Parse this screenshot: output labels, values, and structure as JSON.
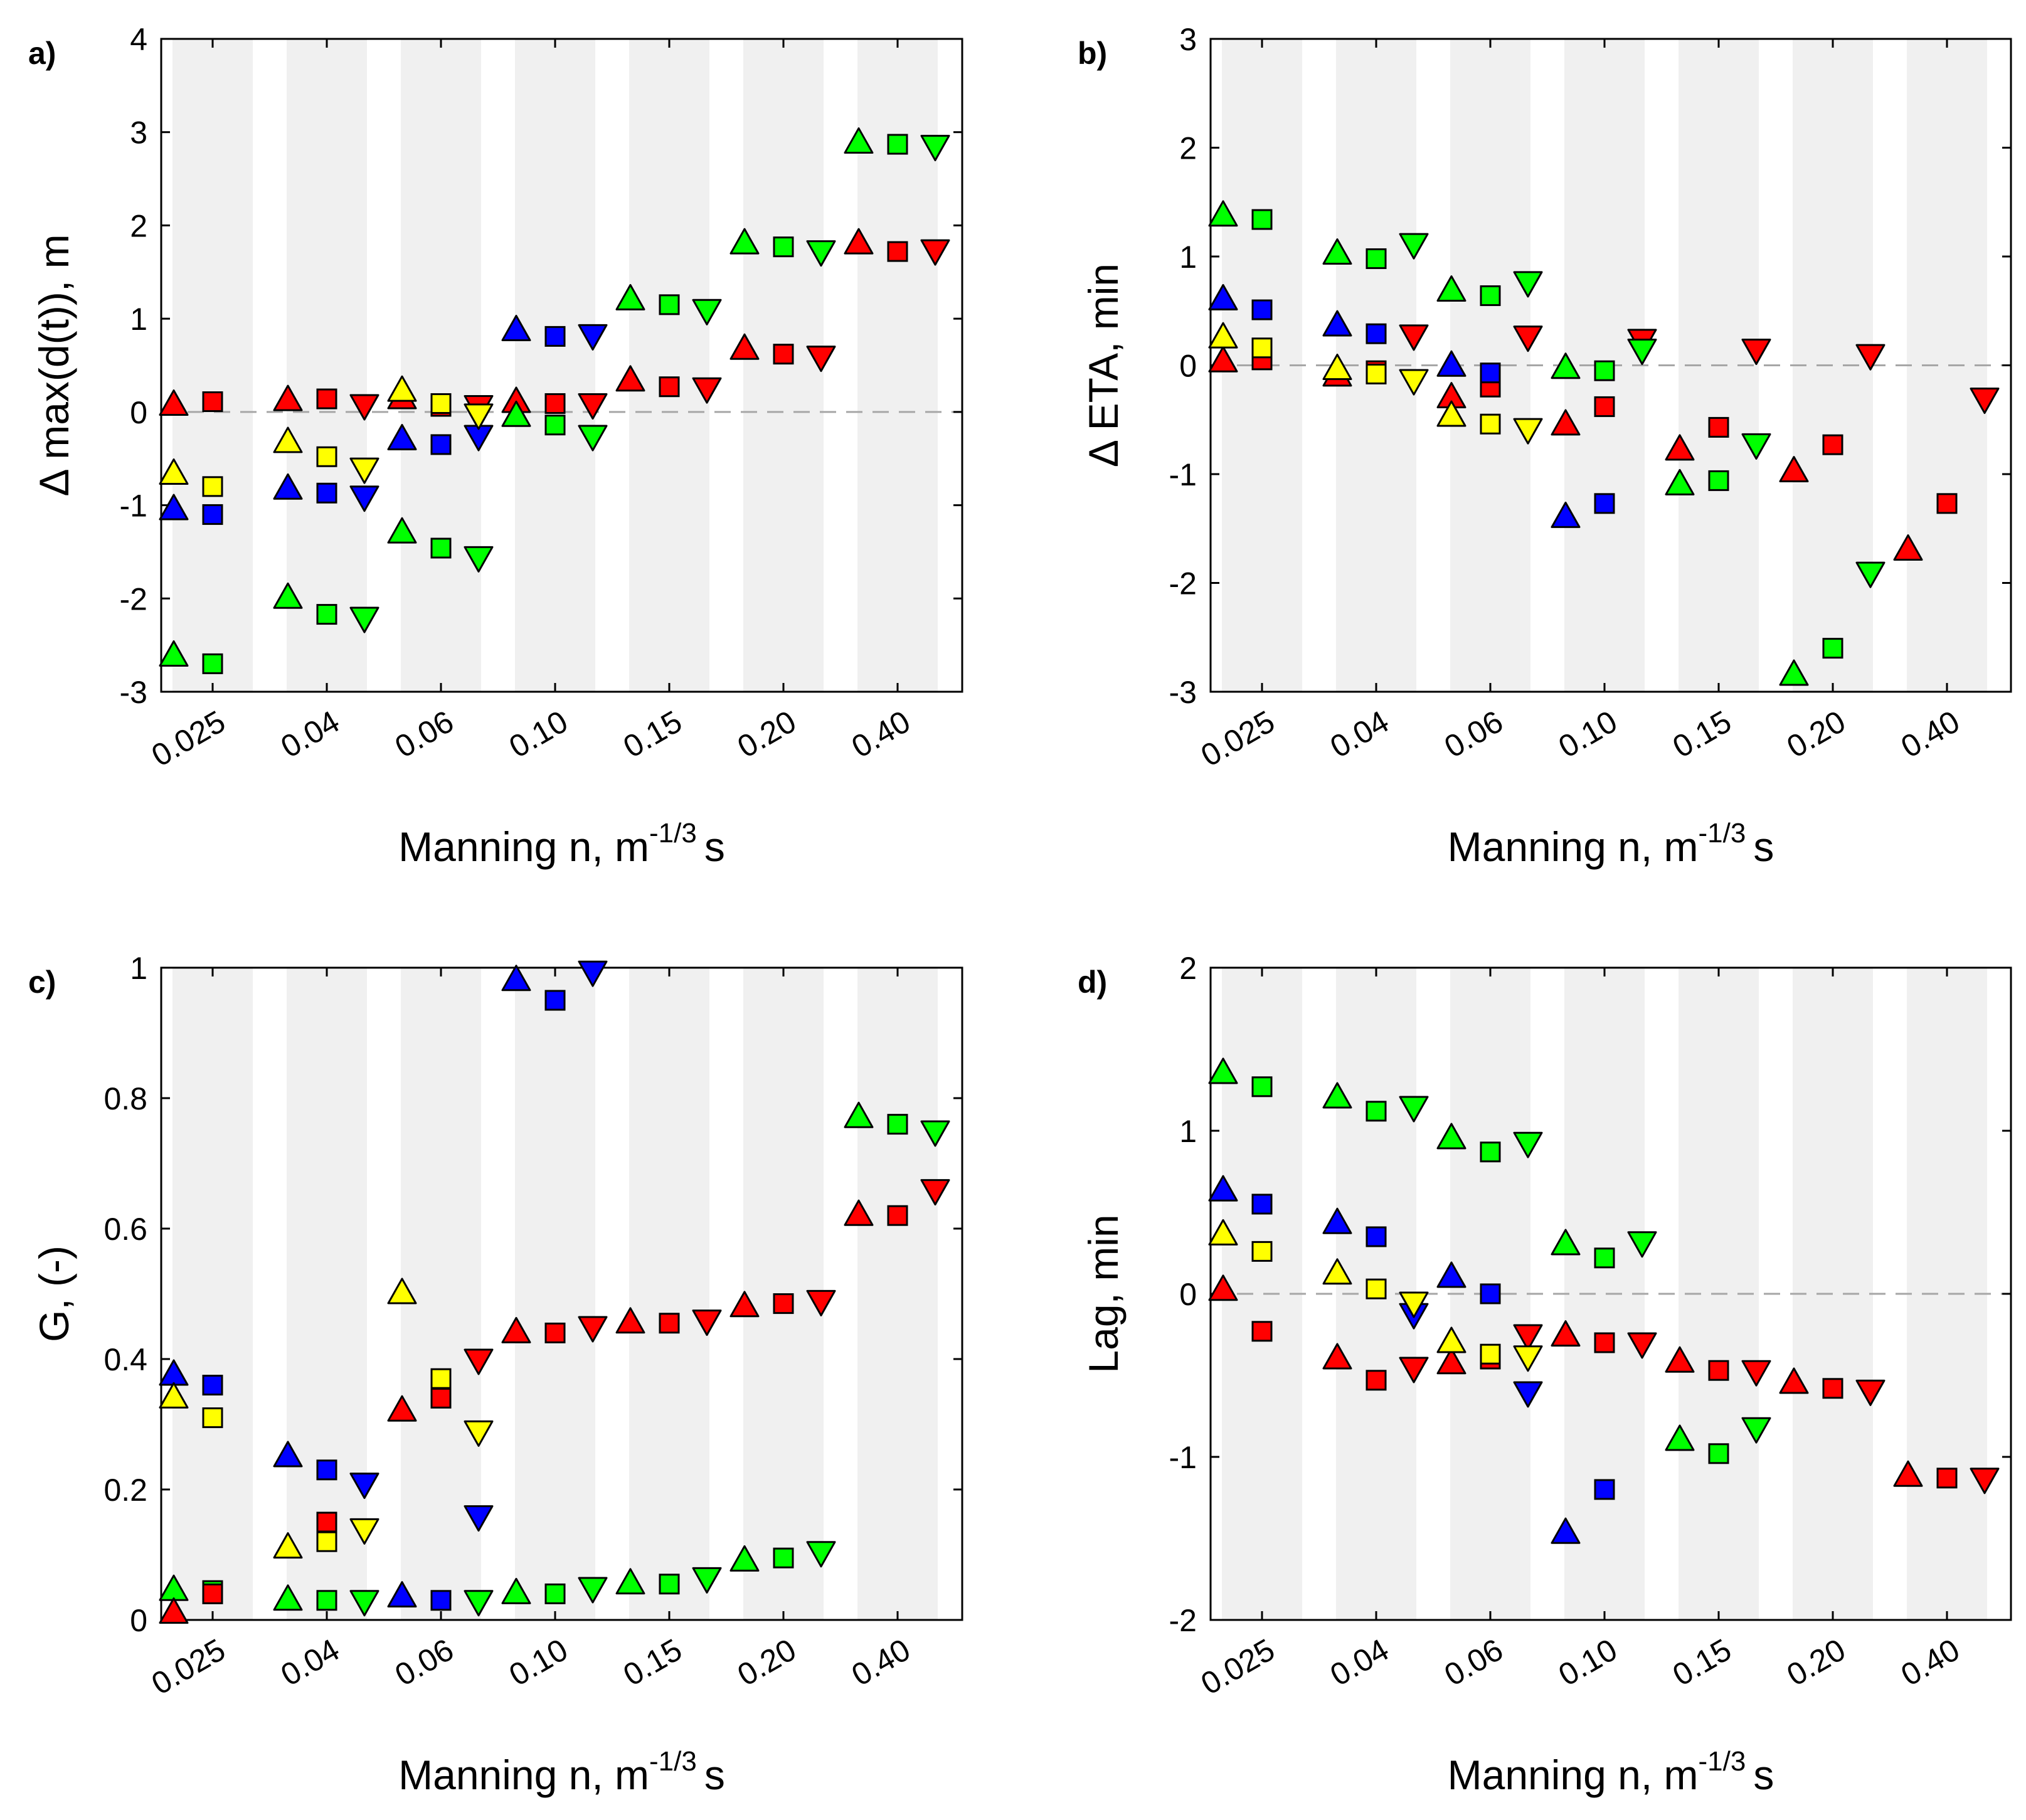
{
  "colors": {
    "red": "#ff0000",
    "green": "#00ff00",
    "blue": "#0000ff",
    "yellow": "#ffff00",
    "band": "#f0f0f0",
    "refline": "#a6a6a6"
  },
  "xlabel": {
    "main": "Manning n, m",
    "sup": "-1/3",
    "unit": "s"
  },
  "chart_data": [
    {
      "type": "scatter",
      "panel": "a)",
      "ylabel": "Δ max(d(t)), m",
      "categories": [
        "0.025",
        "0.04",
        "0.06",
        "0.10",
        "0.15",
        "0.20",
        "0.40"
      ],
      "ylim": [
        -3,
        4
      ],
      "yticks": [
        "-3",
        "-2",
        "-1",
        "0",
        "1",
        "2",
        "3",
        "4"
      ],
      "refline": 0,
      "series": [
        {
          "color": "red",
          "triangle_up": [
            0.07,
            0.12,
            0.14,
            0.1,
            0.33,
            0.67,
            1.8
          ],
          "square": [
            0.11,
            0.14,
            0.06,
            0.09,
            0.27,
            0.62,
            1.72
          ],
          "triangle_down": [
            null,
            0.08,
            0.07,
            0.09,
            0.26,
            0.6,
            1.74
          ]
        },
        {
          "color": "green",
          "triangle_up": [
            -2.62,
            -2.0,
            -1.3,
            -0.05,
            1.2,
            1.8,
            2.88
          ],
          "square": [
            -2.7,
            -2.17,
            -1.46,
            -0.14,
            1.15,
            1.77,
            2.87
          ],
          "triangle_down": [
            null,
            -2.2,
            -1.55,
            -0.25,
            1.1,
            1.73,
            2.86
          ]
        },
        {
          "color": "blue",
          "triangle_up": [
            -1.05,
            -0.83,
            -0.3,
            0.87,
            null,
            null,
            null
          ],
          "square": [
            -1.1,
            -0.87,
            -0.35,
            0.81,
            null,
            null,
            null
          ],
          "triangle_down": [
            null,
            -0.9,
            -0.25,
            0.83,
            null,
            null,
            null
          ]
        },
        {
          "color": "yellow",
          "triangle_up": [
            -0.67,
            -0.33,
            0.22,
            null,
            null,
            null,
            null
          ],
          "square": [
            -0.8,
            -0.48,
            0.09,
            null,
            null,
            null,
            null
          ],
          "triangle_down": [
            null,
            -0.6,
            -0.02,
            null,
            null,
            null,
            null
          ]
        }
      ]
    },
    {
      "type": "scatter",
      "panel": "b)",
      "ylabel": "Δ ETA, min",
      "categories": [
        "0.025",
        "0.04",
        "0.06",
        "0.10",
        "0.15",
        "0.20",
        "0.40"
      ],
      "ylim": [
        -3,
        3
      ],
      "yticks": [
        "-3",
        "-2",
        "-1",
        "0",
        "1",
        "2",
        "3"
      ],
      "refline": 0,
      "series": [
        {
          "color": "red",
          "triangle_up": [
            0.03,
            -0.1,
            -0.3,
            -0.55,
            -0.78,
            -0.98,
            -1.7
          ],
          "square": [
            0.05,
            -0.05,
            -0.2,
            -0.38,
            -0.57,
            -0.73,
            -1.27
          ],
          "triangle_down": [
            null,
            0.28,
            0.27,
            0.24,
            0.15,
            0.1,
            -0.3
          ]
        },
        {
          "color": "green",
          "triangle_up": [
            1.37,
            1.02,
            0.68,
            -0.03,
            -1.1,
            -2.85,
            null
          ],
          "square": [
            1.34,
            0.98,
            0.64,
            -0.05,
            -1.06,
            -2.6,
            null
          ],
          "triangle_down": [
            null,
            1.12,
            0.77,
            0.15,
            -0.72,
            -1.9,
            null
          ]
        },
        {
          "color": "blue",
          "triangle_up": [
            0.6,
            0.36,
            -0.01,
            -1.4,
            null,
            null,
            null
          ],
          "square": [
            0.51,
            0.29,
            -0.07,
            -1.27,
            null,
            null,
            null
          ],
          "triangle_down": [
            null,
            null,
            null,
            null,
            null,
            null,
            null
          ]
        },
        {
          "color": "yellow",
          "triangle_up": [
            0.25,
            -0.04,
            -0.47,
            null,
            null,
            null,
            null
          ],
          "square": [
            0.16,
            -0.08,
            -0.54,
            null,
            null,
            null,
            null
          ],
          "triangle_down": [
            null,
            -0.13,
            -0.58,
            null,
            null,
            null,
            null
          ]
        }
      ]
    },
    {
      "type": "scatter",
      "panel": "c)",
      "ylabel": "G, (-)",
      "categories": [
        "0.025",
        "0.04",
        "0.06",
        "0.10",
        "0.15",
        "0.20",
        "0.40"
      ],
      "ylim": [
        0,
        1
      ],
      "yticks": [
        "0",
        "0.2",
        "0.4",
        "0.6",
        "0.8",
        "1"
      ],
      "refline": null,
      "series": [
        {
          "color": "green",
          "triangle_up": [
            0.045,
            0.03,
            null,
            0.04,
            0.055,
            0.09,
            0.77
          ],
          "square": [
            0.045,
            0.03,
            null,
            0.04,
            0.055,
            0.095,
            0.76
          ],
          "triangle_down": [
            null,
            0.03,
            0.03,
            0.05,
            0.065,
            0.105,
            0.75
          ]
        },
        {
          "color": "red",
          "triangle_up": [
            0.01,
            null,
            0.32,
            0.44,
            0.455,
            0.48,
            0.62
          ],
          "square": [
            0.04,
            0.15,
            0.34,
            0.44,
            0.455,
            0.485,
            0.62
          ],
          "triangle_down": [
            null,
            null,
            0.4,
            0.45,
            0.46,
            0.49,
            0.66
          ]
        },
        {
          "color": "blue",
          "triangle_up": [
            0.375,
            0.25,
            0.035,
            0.98,
            null,
            null,
            null
          ],
          "square": [
            0.36,
            0.23,
            0.03,
            0.95,
            null,
            null,
            null
          ],
          "triangle_down": [
            null,
            0.21,
            0.16,
            0.995,
            null,
            null,
            null
          ]
        },
        {
          "color": "yellow",
          "triangle_up": [
            0.34,
            0.11,
            0.5,
            null,
            null,
            null,
            null
          ],
          "square": [
            0.31,
            0.12,
            0.37,
            null,
            null,
            null,
            null
          ],
          "triangle_down": [
            null,
            0.14,
            0.29,
            null,
            null,
            null,
            null
          ]
        }
      ]
    },
    {
      "type": "scatter",
      "panel": "d)",
      "ylabel": "Lag, min",
      "categories": [
        "0.025",
        "0.04",
        "0.06",
        "0.10",
        "0.15",
        "0.20",
        "0.40"
      ],
      "ylim": [
        -2,
        2
      ],
      "yticks": [
        "-2",
        "-1",
        "0",
        "1",
        "2"
      ],
      "refline": 0,
      "series": [
        {
          "color": "red",
          "triangle_up": [
            0.02,
            -0.4,
            -0.43,
            -0.26,
            -0.42,
            -0.55,
            -1.12
          ],
          "square": [
            -0.23,
            -0.53,
            -0.4,
            -0.3,
            -0.47,
            -0.58,
            -1.13
          ],
          "triangle_down": [
            null,
            -0.45,
            -0.25,
            -0.3,
            -0.47,
            -0.59,
            -1.13
          ]
        },
        {
          "color": "green",
          "triangle_up": [
            1.35,
            1.2,
            0.95,
            0.3,
            -0.9,
            null,
            null
          ],
          "square": [
            1.27,
            1.12,
            0.87,
            0.22,
            -0.98,
            null,
            null
          ],
          "triangle_down": [
            null,
            1.15,
            0.93,
            0.32,
            -0.82,
            null,
            null
          ]
        },
        {
          "color": "blue",
          "triangle_up": [
            0.63,
            0.43,
            0.1,
            -1.47,
            null,
            null,
            null
          ],
          "square": [
            0.55,
            0.35,
            0.0,
            -1.2,
            null,
            null,
            null
          ],
          "triangle_down": [
            null,
            -0.12,
            -0.6,
            null,
            null,
            null,
            null
          ]
        },
        {
          "color": "yellow",
          "triangle_up": [
            0.36,
            0.12,
            -0.3,
            null,
            null,
            null,
            null
          ],
          "square": [
            0.26,
            0.03,
            -0.37,
            null,
            null,
            null,
            null
          ],
          "triangle_down": [
            null,
            -0.05,
            -0.38,
            null,
            null,
            null,
            null
          ]
        }
      ]
    }
  ]
}
